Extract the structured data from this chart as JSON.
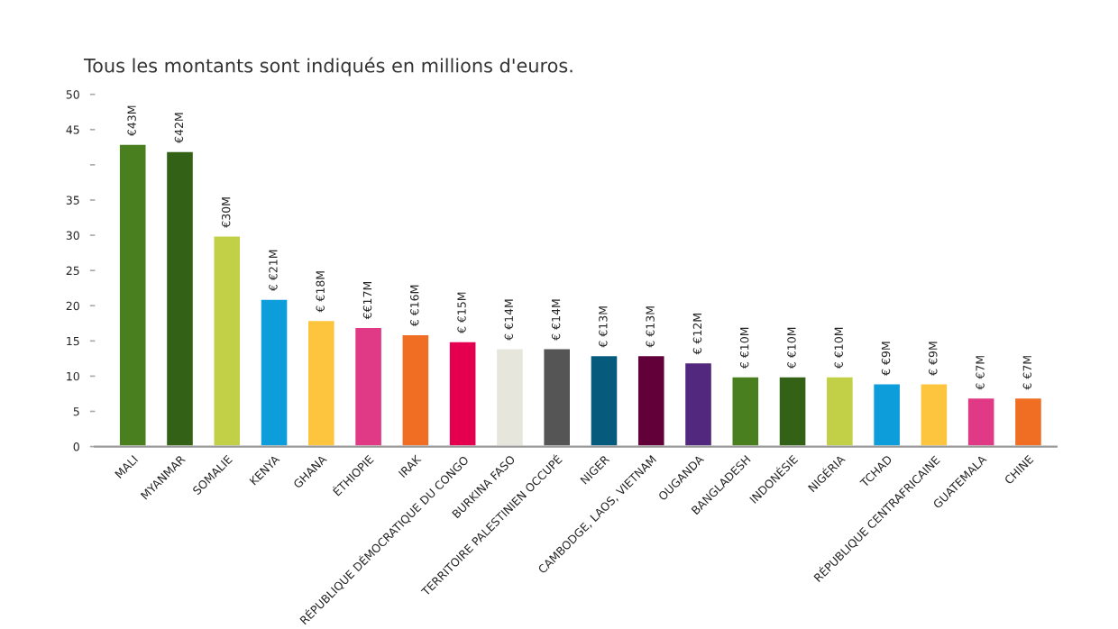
{
  "chart_data": {
    "type": "bar",
    "title": "Tous les montants sont indiqués en millions d'euros.",
    "categories": [
      "MALI",
      "MYANMAR",
      "SOMALIE",
      "KENYA",
      "GHANA",
      "ÉTHIOPIE",
      "IRAK",
      "RÉPUBLIQUE DÉMOCRATIQUE DU CONGO",
      "BURKINA FASO",
      "TERRITOIRE PALESTINIEN OCCUPÉ",
      "NIGER",
      "CAMBODGE, LAOS, VIETNAM",
      "OUGANDA",
      "BANGLADESH",
      "INDONÉSIE",
      "NIGÉRIA",
      "TCHAD",
      "RÉPUBLIQUE CENTRAFRICAINE",
      "GUATEMALA",
      "CHINE"
    ],
    "values": [
      43,
      42,
      30,
      21,
      18,
      17,
      16,
      15,
      14,
      14,
      13,
      13,
      12,
      10,
      10,
      10,
      9,
      9,
      7,
      7
    ],
    "colors": [
      "#4a7f1f",
      "#336116",
      "#c1d046",
      "#0d9dda",
      "#fdc43d",
      "#e03a86",
      "#ef6e23",
      "#e4004e",
      "#e6e6dc",
      "#555555",
      "#065b7c",
      "#62003a",
      "#51287d",
      "#4a7f1f",
      "#336116",
      "#c1d046",
      "#0d9dda",
      "#fdc43d",
      "#e03a86",
      "#ef6e23"
    ],
    "value_labels": [
      "€43M",
      "€42M",
      "€30M",
      "€ €21M",
      "€ €18M",
      "€€17M",
      "€ €16M",
      "€ €15M",
      "€ €14M",
      "€ €14M",
      "€ €13M",
      "€ €13M",
      "€ €12M",
      "€ €10M",
      "€ €10M",
      "€ €10M",
      "€ €9M",
      "€ €9M",
      "€ €7M",
      "€ €7M"
    ],
    "ylim": [
      0,
      50
    ],
    "yticks": [
      0,
      5,
      10,
      15,
      20,
      25,
      30,
      35,
      {
        "value": 40,
        "label": null
      },
      45,
      50
    ],
    "grid": false
  }
}
